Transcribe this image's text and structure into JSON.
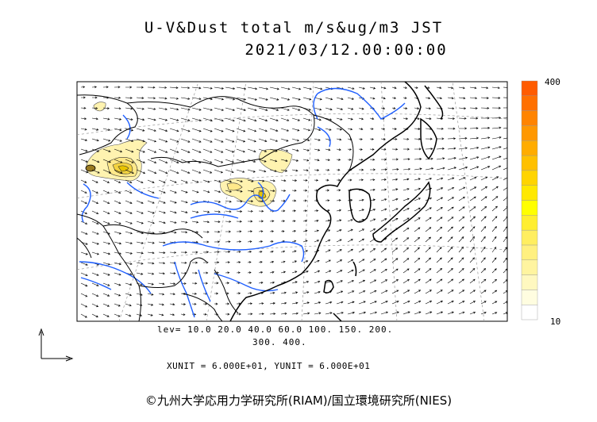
{
  "title": {
    "line1": "U-V&Dust total m/s&ug/m3 JST",
    "line2": "2021/03/12.00:00:00"
  },
  "colorbar": {
    "max_label": "400",
    "min_label": "10",
    "colors": [
      "#ffffff",
      "#fffde0",
      "#fff8c0",
      "#fff4a0",
      "#fff080",
      "#ffee60",
      "#ffee30",
      "#ffff00",
      "#ffe800",
      "#ffd400",
      "#ffc000",
      "#ffac00",
      "#ff9800",
      "#ff8400",
      "#ff7000",
      "#ff5c00"
    ]
  },
  "levels": {
    "line1": "lev= 10.0 20.0 40.0 60.0 100. 150. 200.",
    "line2": "300. 400."
  },
  "units": "XUNIT = 6.000E+01, YUNIT = 6.000E+01",
  "copyright": "©九州大学応用力学研究所(RIAM)/国立環境研究所(NIES)",
  "colors": {
    "coast": "#000000",
    "river": "#1f5fff",
    "dust_low": "#fff3b0",
    "dust_mid": "#ffe98a",
    "dust_high": "#e8c300",
    "dust_peak": "#9a7a20"
  }
}
